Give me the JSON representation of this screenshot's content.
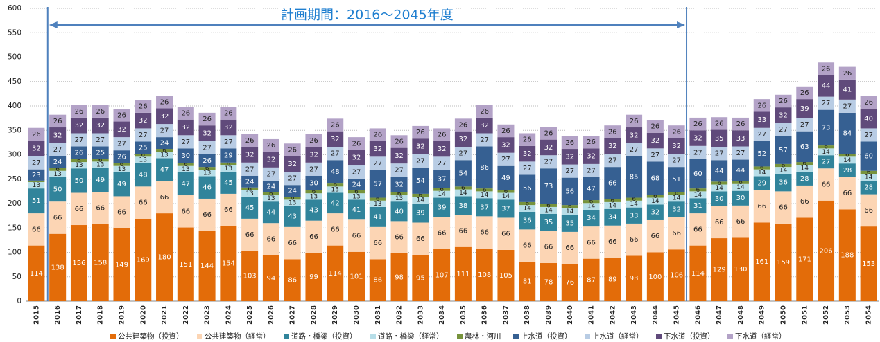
{
  "chart_data": {
    "type": "stacked_bar",
    "annotation": {
      "text": "計画期間：2016～2045年度",
      "from": "2016",
      "to": "2045"
    },
    "categories": [
      "2015",
      "2016",
      "2017",
      "2018",
      "2019",
      "2020",
      "2021",
      "2022",
      "2023",
      "2024",
      "2025",
      "2026",
      "2027",
      "2028",
      "2029",
      "2030",
      "2031",
      "2032",
      "2033",
      "2034",
      "2035",
      "2036",
      "2037",
      "2038",
      "2039",
      "2040",
      "2041",
      "2042",
      "2043",
      "2044",
      "2045",
      "2046",
      "2047",
      "2048",
      "2049",
      "2050",
      "2051",
      "2052",
      "2053",
      "2054"
    ],
    "series": [
      {
        "name": "公共建築物（投資）",
        "color": "#e36c09",
        "values": [
          114,
          138,
          156,
          158,
          149,
          169,
          180,
          151,
          144,
          154,
          103,
          94,
          86,
          99,
          114,
          101,
          86,
          98,
          95,
          107,
          111,
          108,
          105,
          81,
          78,
          76,
          87,
          89,
          93,
          100,
          106,
          114,
          129,
          130,
          161,
          159,
          171,
          206,
          188,
          153
        ]
      },
      {
        "name": "公共建築物（経常）",
        "color": "#fcd5b4",
        "values": [
          66,
          66,
          66,
          66,
          66,
          66,
          66,
          66,
          66,
          66,
          66,
          66,
          66,
          66,
          66,
          66,
          66,
          66,
          66,
          66,
          66,
          66,
          66,
          66,
          66,
          66,
          66,
          66,
          66,
          66,
          66,
          66,
          66,
          66,
          66,
          66,
          66,
          66,
          66,
          66
        ]
      },
      {
        "name": "道路・橋梁（投資）",
        "color": "#31849b",
        "values": [
          51,
          50,
          50,
          49,
          49,
          48,
          47,
          47,
          46,
          45,
          45,
          44,
          43,
          43,
          42,
          41,
          41,
          40,
          39,
          39,
          38,
          37,
          37,
          36,
          35,
          35,
          34,
          34,
          33,
          32,
          32,
          31,
          30,
          30,
          29,
          36,
          28,
          27,
          28,
          28
        ]
      },
      {
        "name": "道路・橋梁（経常）",
        "color": "#b7dee8",
        "values": [
          13,
          13,
          13,
          13,
          13,
          13,
          13,
          13,
          13,
          13,
          13,
          13,
          13,
          13,
          13,
          13,
          13,
          13,
          14,
          14,
          14,
          14,
          14,
          14,
          14,
          14,
          14,
          14,
          14,
          14,
          14,
          14,
          14,
          14,
          14,
          14,
          14,
          14,
          14,
          14
        ]
      },
      {
        "name": "農林・河川",
        "color": "#77933c",
        "values": [
          3,
          6,
          6,
          6,
          6,
          6,
          6,
          6,
          6,
          6,
          6,
          6,
          6,
          6,
          6,
          6,
          6,
          6,
          6,
          6,
          6,
          6,
          6,
          6,
          6,
          6,
          6,
          6,
          6,
          6,
          6,
          6,
          6,
          6,
          6,
          6,
          6,
          6,
          6,
          6
        ],
        "value_labels": [
          null,
          "6",
          "6",
          "6",
          "6",
          "6",
          "6",
          "6",
          "6",
          "6",
          "6",
          "6",
          "6",
          "6",
          "6",
          "6",
          "6",
          "6",
          "6",
          "6",
          "6",
          "6",
          "6",
          "6",
          "6",
          "6",
          "6",
          "6",
          "6",
          "6",
          "6",
          "6",
          "6",
          "6",
          "6",
          "6",
          "6",
          "6",
          "6",
          "6"
        ]
      },
      {
        "name": "上水道（投資）",
        "color": "#366092",
        "values": [
          23,
          24,
          26,
          25,
          26,
          25,
          24,
          30,
          26,
          29,
          24,
          24,
          24,
          30,
          48,
          24,
          57,
          32,
          54,
          37,
          54,
          86,
          49,
          56,
          73,
          56,
          47,
          66,
          85,
          68,
          51,
          60,
          44,
          44,
          52,
          57,
          63,
          73,
          84,
          60
        ]
      },
      {
        "name": "上水道（経常）",
        "color": "#b8cce4",
        "values": [
          27,
          27,
          27,
          27,
          27,
          27,
          27,
          27,
          27,
          27,
          27,
          27,
          27,
          27,
          27,
          27,
          27,
          27,
          27,
          27,
          27,
          27,
          27,
          27,
          27,
          27,
          27,
          27,
          27,
          27,
          27,
          27,
          27,
          27,
          27,
          27,
          27,
          27,
          27,
          27
        ]
      },
      {
        "name": "下水道（投資）",
        "color": "#604a7b",
        "values": [
          32,
          32,
          32,
          32,
          32,
          32,
          32,
          32,
          32,
          32,
          32,
          32,
          32,
          32,
          32,
          32,
          32,
          32,
          32,
          32,
          32,
          32,
          32,
          32,
          32,
          32,
          32,
          32,
          32,
          32,
          32,
          32,
          35,
          33,
          33,
          32,
          39,
          44,
          41,
          40
        ]
      },
      {
        "name": "下水道（経常）",
        "color": "#b3a2c7",
        "values": [
          26,
          26,
          26,
          26,
          26,
          26,
          26,
          26,
          26,
          26,
          26,
          26,
          26,
          26,
          26,
          26,
          26,
          26,
          26,
          26,
          26,
          26,
          26,
          26,
          26,
          26,
          26,
          26,
          26,
          26,
          26,
          26,
          26,
          26,
          26,
          26,
          26,
          26,
          26,
          26
        ]
      }
    ],
    "ylim": [
      0,
      600
    ],
    "yticks": [
      0,
      50,
      100,
      150,
      200,
      250,
      300,
      350,
      400,
      450,
      500,
      550,
      600
    ],
    "grid": true,
    "legend": "bottom"
  }
}
